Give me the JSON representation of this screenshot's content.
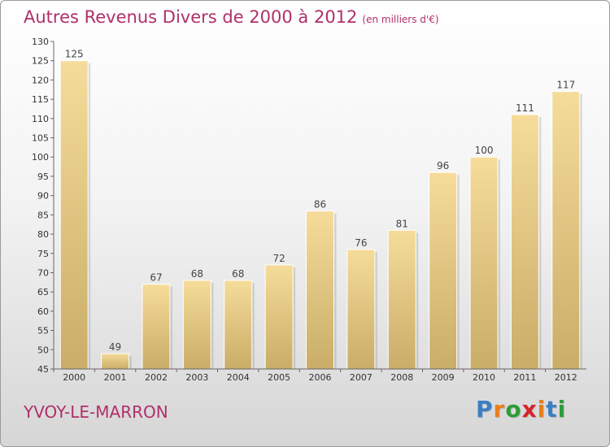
{
  "title": "Autres Revenus Divers de 2000 à 2012",
  "subtitle": "(en milliers d'€)",
  "place": "YVOY-LE-MARRON",
  "logo": {
    "letters": [
      "P",
      "r",
      "o",
      "x",
      "i",
      "t",
      "i"
    ],
    "colors": [
      "#3a7fc4",
      "#e87e1c",
      "#2c9c3a",
      "#d8232a",
      "#e87e1c",
      "#3a7fc4",
      "#2c9c3a"
    ]
  },
  "colors": {
    "title": "#b0306a",
    "bar_light": "#f6dc9a",
    "bar_dark": "#c9ad68"
  },
  "chart_data": {
    "type": "bar",
    "categories": [
      "2000",
      "2001",
      "2002",
      "2003",
      "2004",
      "2005",
      "2006",
      "2007",
      "2008",
      "2009",
      "2010",
      "2011",
      "2012"
    ],
    "values": [
      125,
      49,
      67,
      68,
      68,
      72,
      86,
      76,
      81,
      96,
      100,
      111,
      117
    ],
    "ylim": [
      45,
      130
    ],
    "yticks": [
      45,
      50,
      55,
      60,
      65,
      70,
      75,
      80,
      85,
      90,
      95,
      100,
      105,
      110,
      115,
      120,
      125,
      130
    ],
    "grid": false,
    "legend": "none",
    "data_labels": true
  }
}
